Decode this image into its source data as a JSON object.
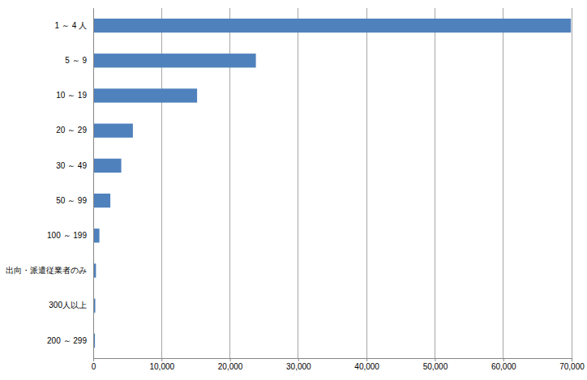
{
  "chart_data": {
    "type": "bar",
    "orientation": "horizontal",
    "categories": [
      "1 ～ 4 人",
      "5 ～ 9",
      "10 ～ 19",
      "20 ～ 29",
      "30 ～ 49",
      "50 ～ 99",
      "100 ～ 199",
      "出向・派遣従業者のみ",
      "300人以上",
      "200 ～ 299"
    ],
    "values": [
      69900,
      23800,
      15200,
      5800,
      4100,
      2500,
      900,
      400,
      300,
      250
    ],
    "color": "#4f81bd",
    "xlim": [
      0,
      70000
    ],
    "xticks": [
      0,
      {
        "value": 10000,
        "label": "10,000"
      },
      {
        "value": 20000,
        "label": "20,000"
      },
      {
        "value": 30000,
        "label": "30,000"
      },
      {
        "value": 40000,
        "label": "40,000"
      },
      {
        "value": 50000,
        "label": "50,000"
      },
      {
        "value": 60000,
        "label": "60,000"
      },
      {
        "value": 70000,
        "label": "70,000"
      }
    ],
    "grid": true
  }
}
